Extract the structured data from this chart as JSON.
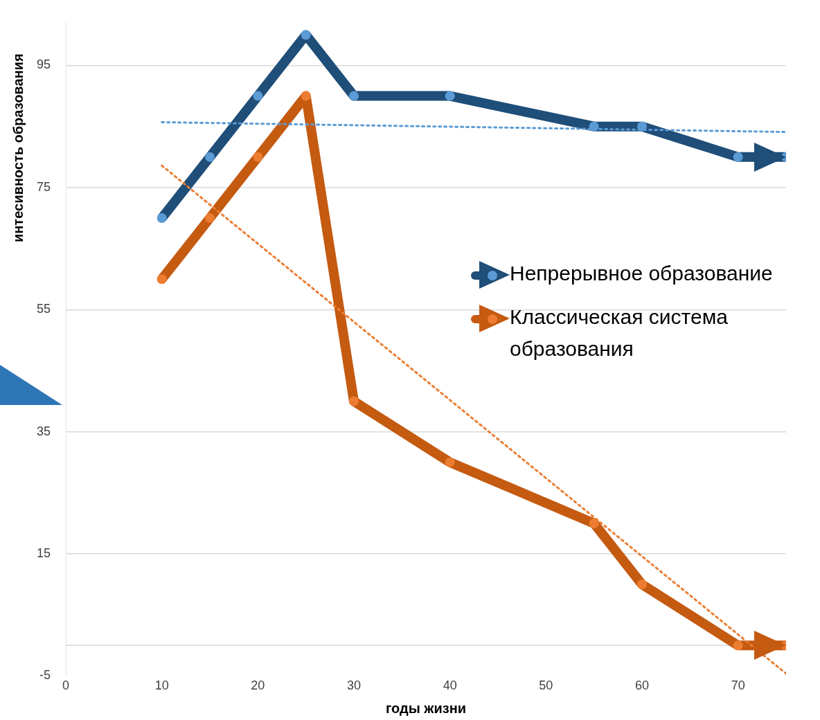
{
  "chart_data": {
    "type": "line",
    "xlabel": "годы жизни",
    "ylabel": "интесивность образования",
    "xlim": [
      0,
      75
    ],
    "xticks": [
      0,
      10,
      20,
      30,
      40,
      50,
      60,
      70
    ],
    "ylim": [
      -5,
      102
    ],
    "yticks": [
      -5,
      15,
      35,
      55,
      75,
      95
    ],
    "grid": "y",
    "legend": "right",
    "marker": "circle",
    "line_style": "solid",
    "series": [
      {
        "name": "Непрерывное образование",
        "color": "#1f4e79",
        "x": [
          10,
          15,
          20,
          25,
          30,
          40,
          55,
          60,
          70,
          75
        ],
        "values": [
          70,
          80,
          90,
          100,
          90,
          90,
          85,
          85,
          80,
          80
        ]
      },
      {
        "name": "Классическая система образования",
        "color": "#c55a11",
        "x": [
          10,
          15,
          20,
          25,
          30,
          40,
          55,
          60,
          70,
          75
        ],
        "values": [
          60,
          70,
          80,
          90,
          40,
          30,
          20,
          10,
          0,
          0
        ]
      },
      {
        "type": "line",
        "color": "#5b9bd5",
        "marker": "none",
        "line_style": "dotted",
        "x": [
          10,
          75
        ],
        "values": [
          85.7,
          84.1
        ]
      },
      {
        "type": "line",
        "color": "#ed7d31",
        "marker": "none",
        "line_style": "dotted",
        "x": [
          10,
          75
        ],
        "values": [
          78.6,
          -4.6
        ]
      }
    ]
  }
}
